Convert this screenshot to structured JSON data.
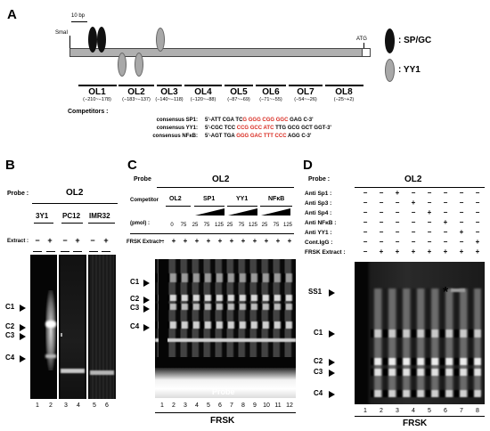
{
  "panels": {
    "A": "A",
    "B": "B",
    "C": "C",
    "D": "D"
  },
  "panelA": {
    "scale_label": "10 bp",
    "smal_label": "SmaI",
    "atg_label": "ATG",
    "legend": [
      {
        "label": ": SP/GC"
      },
      {
        "label": ": YY1"
      }
    ],
    "ol_regions": [
      {
        "name": "OL1",
        "range": "(−210~−178)"
      },
      {
        "name": "OL2",
        "range": "(−183~−137)"
      },
      {
        "name": "OL3",
        "range": "(−140~−118)"
      },
      {
        "name": "OL4",
        "range": "(−120~−88)"
      },
      {
        "name": "OL5",
        "range": "(−87~−69)"
      },
      {
        "name": "OL6",
        "range": "(−71~−55)"
      },
      {
        "name": "OL7",
        "range": "(−54~−26)"
      },
      {
        "name": "OL8",
        "range": "(−25~+2)"
      }
    ],
    "competitors_label": "Competitors  :",
    "competitors": [
      {
        "name": "consensus SP1:",
        "pre": "5'-ATT CGA TC",
        "hl": "G GGG CGG GGC",
        "post": " GAG C-3'"
      },
      {
        "name": "consensus YY1:",
        "pre": "5'-CGC TCC ",
        "hl": "CCG GCC ATC",
        "post": " TTG GCG GCT GGT-3'"
      },
      {
        "name": "consensus NFκB:",
        "pre": "5'-AGT TGA ",
        "hl": "GGG GAC TTT CCC",
        "post": " AGG C-3'"
      }
    ]
  },
  "panelB": {
    "probe_label": "Probe :",
    "probe": "OL2",
    "cells": [
      "3Y1",
      "PC12",
      "IMR32"
    ],
    "extract_label": "Extract :",
    "extract": [
      "−",
      "+",
      "−",
      "+",
      "−",
      "+"
    ],
    "bands": [
      "C1",
      "C2",
      "C3",
      "C4"
    ],
    "lane_numbers": [
      "1",
      "2",
      "3",
      "4",
      "5",
      "6"
    ]
  },
  "panelC": {
    "probe_label": "Probe",
    "probe": "OL2",
    "competitor_label": "Competitor",
    "competitors": [
      "OL2",
      "SP1",
      "YY1",
      "NFκB"
    ],
    "pmol_label": "(pmol) :",
    "pmol": [
      "0",
      "75",
      "25",
      "75",
      "125",
      "25",
      "75",
      "125",
      "25",
      "75",
      "125"
    ],
    "frsk_label": "FRSK Extract :",
    "frsk": [
      "−",
      "+",
      "+",
      "+",
      "+",
      "+",
      "+",
      "+",
      "+",
      "+",
      "+",
      "+"
    ],
    "bands": [
      "C1",
      "C2",
      "C3",
      "C4"
    ],
    "free_probe": "Probe",
    "lane_numbers": [
      "1",
      "2",
      "3",
      "4",
      "5",
      "6",
      "7",
      "8",
      "9",
      "10",
      "11",
      "12"
    ],
    "footer": "FRSK"
  },
  "panelD": {
    "probe_label": "Probe :",
    "probe": "OL2",
    "antibodies": [
      {
        "label": "Anti Sp1 :",
        "marks": [
          "−",
          "−",
          "+",
          "−",
          "−",
          "−",
          "−",
          "−"
        ]
      },
      {
        "label": "Anti Sp3 :",
        "marks": [
          "−",
          "−",
          "−",
          "+",
          "−",
          "−",
          "−",
          "−"
        ]
      },
      {
        "label": "Anti Sp4 :",
        "marks": [
          "−",
          "−",
          "−",
          "−",
          "+",
          "−",
          "−",
          "−"
        ]
      },
      {
        "label": "Anti NFκB :",
        "marks": [
          "−",
          "−",
          "−",
          "−",
          "−",
          "+",
          "−",
          "−"
        ]
      },
      {
        "label": "Anti YY1 :",
        "marks": [
          "−",
          "−",
          "−",
          "−",
          "−",
          "−",
          "+",
          "−"
        ]
      },
      {
        "label": "Cont.IgG :",
        "marks": [
          "−",
          "−",
          "−",
          "−",
          "−",
          "−",
          "−",
          "+"
        ]
      },
      {
        "label": "FRSK Extract :",
        "marks": [
          "−",
          "+",
          "+",
          "+",
          "+",
          "+",
          "+",
          "+"
        ]
      }
    ],
    "bands": [
      "SS1",
      "C1",
      "C2",
      "C3",
      "C4"
    ],
    "asterisk": "*",
    "lane_numbers": [
      "1",
      "2",
      "3",
      "4",
      "5",
      "6",
      "7",
      "8"
    ],
    "footer": "FRSK"
  }
}
